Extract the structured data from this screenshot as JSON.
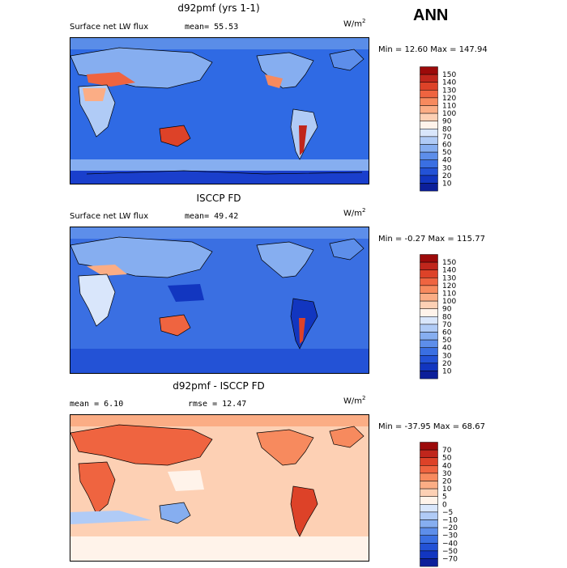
{
  "season": "ANN",
  "units_base": "W/m",
  "units_exp": "2",
  "panels": [
    {
      "title": "d92pmf (yrs 1-1)",
      "left_text": "Surface net LW flux",
      "mid_text": "mean=  55.53",
      "minmax": "Min =  12.60 Max = 147.94",
      "colorbar": {
        "labels": [
          "150",
          "140",
          "130",
          "120",
          "110",
          "100",
          "90",
          "80",
          "70",
          "60",
          "50",
          "40",
          "30",
          "20",
          "10"
        ],
        "colors": [
          "#9c0a0a",
          "#c0261c",
          "#dd4228",
          "#ef6440",
          "#f78a5e",
          "#fbad85",
          "#fdd0b4",
          "#fff3ea",
          "#d9e6fb",
          "#b0cbf6",
          "#86aef0",
          "#5d8eea",
          "#3a6fe2",
          "#2352d6",
          "#1236c0",
          "#0c1f9a"
        ],
        "chart_data": {
          "type": "heatmap",
          "levels": [
            10,
            20,
            30,
            40,
            50,
            60,
            70,
            80,
            90,
            100,
            110,
            120,
            130,
            140,
            150
          ]
        }
      }
    },
    {
      "title": "ISCCP FD",
      "left_text": "Surface net LW flux",
      "mid_text": "mean=  49.42",
      "minmax": "Min =  -0.27 Max = 115.77",
      "colorbar": {
        "labels": [
          "150",
          "140",
          "130",
          "120",
          "110",
          "100",
          "90",
          "80",
          "70",
          "60",
          "50",
          "40",
          "30",
          "20",
          "10"
        ],
        "colors": [
          "#9c0a0a",
          "#c0261c",
          "#dd4228",
          "#ef6440",
          "#f78a5e",
          "#fbad85",
          "#fdd0b4",
          "#fff3ea",
          "#d9e6fb",
          "#b0cbf6",
          "#86aef0",
          "#5d8eea",
          "#3a6fe2",
          "#2352d6",
          "#1236c0",
          "#0c1f9a"
        ],
        "chart_data": {
          "type": "heatmap",
          "levels": [
            10,
            20,
            30,
            40,
            50,
            60,
            70,
            80,
            90,
            100,
            110,
            120,
            130,
            140,
            150
          ]
        }
      }
    },
    {
      "title": "d92pmf - ISCCP FD",
      "left_text": "mean =   6.10",
      "mid_text": "rmse =  12.47",
      "minmax": "Min = -37.95 Max =  68.67",
      "colorbar": {
        "labels": [
          "70",
          "50",
          "40",
          "30",
          "20",
          "10",
          "5",
          "0",
          "−5",
          "−10",
          "−20",
          "−30",
          "−40",
          "−50",
          "−70"
        ],
        "colors": [
          "#9c0a0a",
          "#c0261c",
          "#dd4228",
          "#ef6440",
          "#f78a5e",
          "#fbad85",
          "#fdd0b4",
          "#fff3ea",
          "#d9e6fb",
          "#b0cbf6",
          "#86aef0",
          "#5d8eea",
          "#3a6fe2",
          "#2352d6",
          "#1236c0",
          "#0c1f9a"
        ],
        "chart_data": {
          "type": "heatmap",
          "levels": [
            -70,
            -50,
            -40,
            -30,
            -20,
            -10,
            -5,
            0,
            5,
            10,
            20,
            30,
            40,
            50,
            70
          ]
        }
      }
    }
  ]
}
